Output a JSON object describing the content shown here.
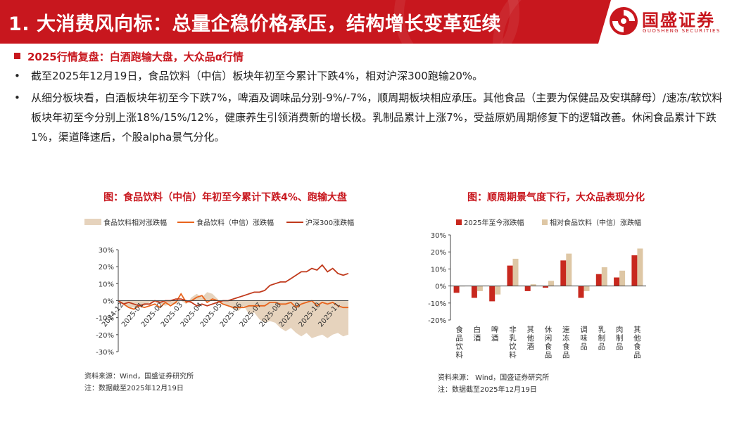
{
  "header": {
    "title": "1. 大消费风向标：总量企稳价格承压，结构增长变革延续",
    "logo_cn": "国盛证券",
    "logo_en": "GUOSHENG SECURITIES"
  },
  "section_heading": "2025行情复盘：白酒跑输大盘，大众品α行情",
  "bullets": [
    "截至2025年12月19日，食品饮料（中信）板块年初至今累计下跌4%，相对沪深300跑输20%。",
    "从细分板块看，白酒板块年初至今下跌7%，啤酒及调味品分别-9%/-7%，顺周期板块相应承压。其他食品（主要为保健品及安琪酵母）/速冻/软饮料板块年初至今分别上涨18%/15%/12%，健康养生引领消费新的增长极。乳制品累计上涨7%，受益原奶周期修复下的逻辑改善。休闲食品累计下跌1%，渠道降速后，个股alpha景气分化。"
  ],
  "colors": {
    "brand_red": "#c8171e",
    "line_sector": "#e8641c",
    "line_csi300": "#c0391b",
    "area_relative": "#e6d3bd",
    "bar_ytd": "#c8281e",
    "bar_relative": "#dec7a5"
  },
  "chart_left": {
    "title": "图：食品饮料（中信）年初至今累计下跌4%、跑输大盘",
    "source": "资料来源：Wind，国盛证券研究所",
    "note": "注：数据截至2025年12月19日"
  },
  "chart_right": {
    "title": "图：顺周期景气度下行，大众品表现分化",
    "source": "资料来源： Wind，国盛证券研究所",
    "note": "注：数据截至2025年12月19日"
  },
  "chart_data": [
    {
      "type": "line",
      "legend": [
        "食品饮料相对涨跌幅",
        "食品饮料（中信）涨跌幅",
        "沪深300涨跌幅"
      ],
      "legend_position": "top",
      "x_ticks": [
        "2024-12",
        "2025-01",
        "2025-02",
        "2025-03",
        "2025-04",
        "2025-05",
        "2025-06",
        "2025-07",
        "2025-08",
        "2025-09",
        "2025-10",
        "2025-11"
      ],
      "y_ticks": [
        "30%",
        "20%",
        "10%",
        "0%",
        "-10%",
        "-20%",
        "-30%"
      ],
      "ylim": [
        -30,
        30
      ],
      "grid": false,
      "series": [
        {
          "name": "食品饮料相对涨跌幅",
          "style": "area",
          "values": [
            0,
            -2,
            -4,
            -4,
            -3,
            -3,
            -1,
            -1,
            -2,
            -3,
            -2,
            -2,
            0,
            -2,
            2,
            4,
            2,
            5,
            4,
            1,
            -2,
            -3,
            -5,
            -6,
            -3,
            -8,
            -7,
            -11,
            -13,
            -12,
            -13,
            -16,
            -18,
            -16,
            -19,
            -21,
            -19,
            -22,
            -21,
            -20,
            -22,
            -20,
            -19,
            -21,
            -20
          ]
        },
        {
          "name": "食品饮料（中信）涨跌幅",
          "style": "line",
          "values": [
            0,
            -2,
            -4,
            -5,
            -3,
            -4,
            -3,
            -2,
            -4,
            -1,
            -3,
            -1,
            4,
            -1,
            0,
            2,
            3,
            -1,
            1,
            0,
            -2,
            -3,
            -4,
            -4,
            -4,
            -3,
            -3,
            -3,
            -3,
            -1,
            -1,
            -2,
            -2,
            -1,
            -4,
            -2,
            -1,
            0,
            -3,
            -1,
            -2,
            -1,
            -3,
            -4,
            -4
          ]
        },
        {
          "name": "沪深300涨跌幅",
          "style": "line",
          "values": [
            0,
            -2,
            -1,
            -2,
            -3,
            -2,
            -2,
            0,
            -1,
            0,
            0,
            1,
            1,
            0,
            -1,
            -3,
            -2,
            -3,
            -2,
            -1,
            0,
            0,
            1,
            2,
            3,
            4,
            5,
            5,
            6,
            9,
            10,
            11,
            11,
            13,
            15,
            17,
            17,
            19,
            18,
            21,
            17,
            19,
            16,
            15,
            16
          ]
        }
      ]
    },
    {
      "type": "bar",
      "legend": [
        "2025年至今涨跌幅",
        "相对食品饮料（中信）涨跌幅"
      ],
      "legend_position": "top",
      "categories": [
        "食品饮料",
        "白酒",
        "啤酒",
        "非乳饮料",
        "其他酒",
        "休闲食品",
        "速冻食品",
        "调味品",
        "乳制品",
        "肉制品",
        "其他食品"
      ],
      "y_ticks": [
        "30%",
        "20%",
        "10%",
        "0%",
        "-10%",
        "-20%"
      ],
      "ylim": [
        -20,
        30
      ],
      "grid": false,
      "series": [
        {
          "name": "2025年至今涨跌幅",
          "values": [
            -4,
            -7,
            -9,
            12,
            -3,
            -1,
            15,
            -7,
            7,
            5,
            18
          ]
        },
        {
          "name": "相对食品饮料（中信）涨跌幅",
          "values": [
            0,
            -3,
            -5,
            16,
            1,
            3,
            19,
            -3,
            11,
            9,
            22
          ]
        }
      ]
    }
  ]
}
